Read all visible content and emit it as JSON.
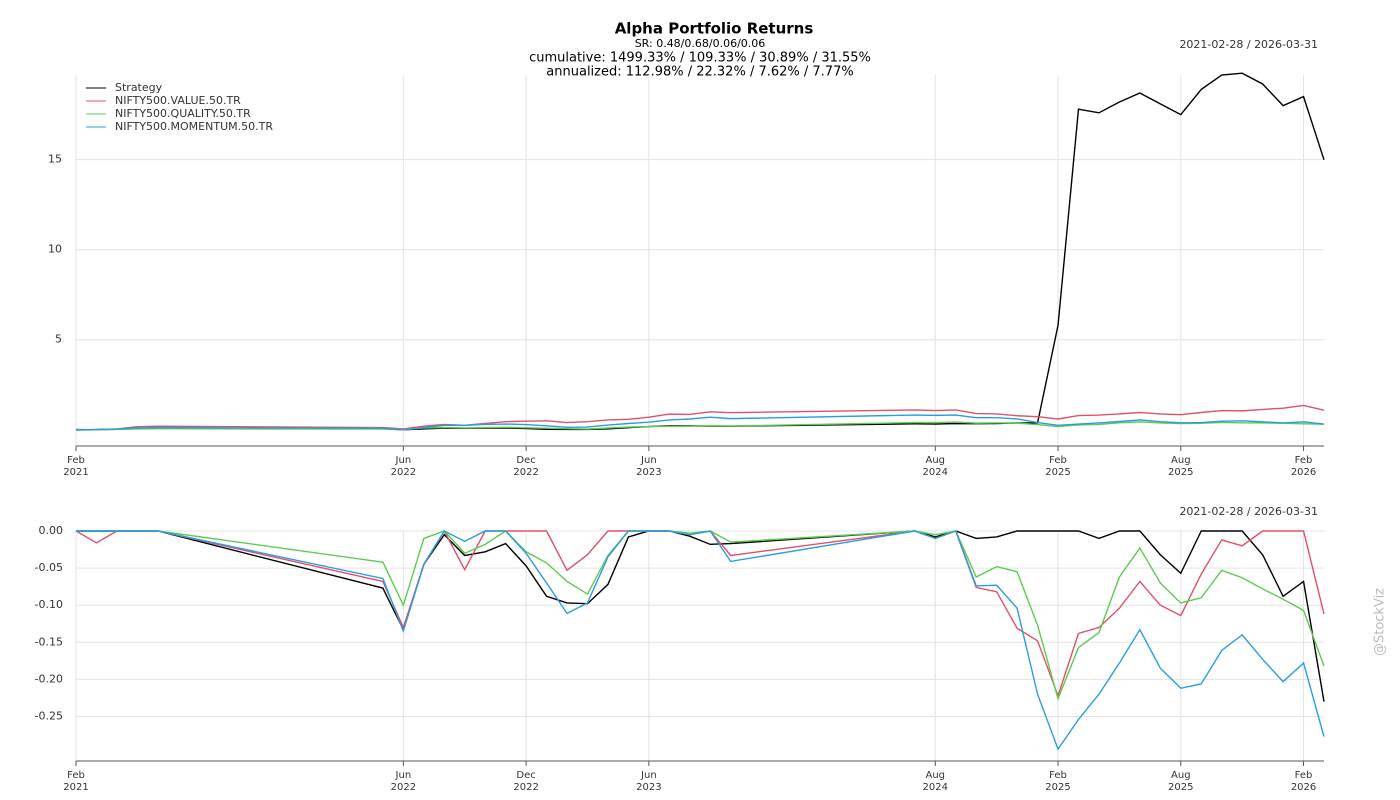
{
  "watermark": "@StockViz",
  "chart_data": [
    {
      "type": "line",
      "title": "Alpha Portfolio Returns",
      "subtitle": [
        "SR: 0.48/0.68/0.06/0.06",
        "cumulative: 1499.33% / 109.33% / 30.89% / 31.55%",
        "annualized: 112.98% / 22.32% / 7.62% / 7.77%"
      ],
      "date_range": "2021-02-28 / 2026-03-31",
      "legend": "upper left",
      "grid": true,
      "x": [
        "2021-02",
        "2021-03",
        "2021-04",
        "2021-05",
        "2021-06",
        "2022-05",
        "2022-06",
        "2022-07",
        "2022-08",
        "2022-09",
        "2022-10",
        "2022-11",
        "2022-12",
        "2023-01",
        "2023-02",
        "2023-03",
        "2023-04",
        "2023-05",
        "2023-06",
        "2023-07",
        "2023-08",
        "2023-09",
        "2023-10",
        "2024-07",
        "2024-08",
        "2024-09",
        "2024-10",
        "2024-11",
        "2024-12",
        "2025-01",
        "2025-02",
        "2025-03",
        "2025-04",
        "2025-05",
        "2025-06",
        "2025-07",
        "2025-08",
        "2025-09",
        "2025-10",
        "2025-11",
        "2025-12",
        "2026-01",
        "2026-02",
        "2026-03"
      ],
      "xlim": [
        "2021-02",
        "2026-03"
      ],
      "xticks": [
        {
          "value": "2021-02",
          "label": "Feb 2021"
        },
        {
          "value": "2022-06",
          "label": "Jun 2022"
        },
        {
          "value": "2022-12",
          "label": "Dec 2022"
        },
        {
          "value": "2023-06",
          "label": "Jun 2023"
        },
        {
          "value": "2024-08",
          "label": "Aug 2024"
        },
        {
          "value": "2025-02",
          "label": "Feb 2025"
        },
        {
          "value": "2025-08",
          "label": "Aug 2025"
        },
        {
          "value": "2026-02",
          "label": "Feb 2026"
        }
      ],
      "ylim": [
        -0.9,
        19.7
      ],
      "yticks": [
        5,
        10,
        15
      ],
      "series": [
        {
          "name": "Strategy",
          "color": "#000000",
          "values": [
            0.0,
            0.01,
            0.03,
            0.08,
            0.1,
            0.06,
            0.0,
            0.05,
            0.1,
            0.08,
            0.09,
            0.1,
            0.07,
            0.03,
            0.02,
            0.02,
            0.05,
            0.12,
            0.18,
            0.23,
            0.22,
            0.2,
            0.2,
            0.33,
            0.32,
            0.35,
            0.34,
            0.35,
            0.38,
            0.38,
            5.8,
            17.8,
            17.6,
            18.2,
            18.7,
            18.1,
            17.5,
            18.9,
            19.7,
            19.8,
            19.2,
            18.0,
            18.5,
            14.99
          ]
        },
        {
          "name": "NIFTY500.VALUE.50.TR",
          "color": "#e0506a",
          "values": [
            0.02,
            0.0,
            0.05,
            0.17,
            0.2,
            0.12,
            0.05,
            0.2,
            0.3,
            0.25,
            0.35,
            0.45,
            0.48,
            0.5,
            0.4,
            0.45,
            0.55,
            0.58,
            0.7,
            0.87,
            0.85,
            1.0,
            0.95,
            1.1,
            1.07,
            1.1,
            0.9,
            0.88,
            0.78,
            0.73,
            0.6,
            0.79,
            0.82,
            0.88,
            0.96,
            0.88,
            0.84,
            0.96,
            1.07,
            1.05,
            1.13,
            1.2,
            1.35,
            1.09
          ]
        },
        {
          "name": "NIFTY500.QUALITY.50.TR",
          "color": "#5ccc4e",
          "values": [
            -0.02,
            0.0,
            0.02,
            0.05,
            0.06,
            0.04,
            0.0,
            0.1,
            0.13,
            0.1,
            0.12,
            0.14,
            0.11,
            0.09,
            0.06,
            0.04,
            0.1,
            0.15,
            0.18,
            0.2,
            0.2,
            0.22,
            0.21,
            0.4,
            0.4,
            0.43,
            0.37,
            0.38,
            0.37,
            0.29,
            0.18,
            0.27,
            0.3,
            0.39,
            0.44,
            0.38,
            0.35,
            0.36,
            0.41,
            0.39,
            0.38,
            0.36,
            0.33,
            0.31
          ]
        },
        {
          "name": "NIFTY500.MOMENTUM.50.TR",
          "color": "#2a9de0",
          "values": [
            0.0,
            0.01,
            0.05,
            0.1,
            0.12,
            0.08,
            0.0,
            0.12,
            0.25,
            0.25,
            0.3,
            0.32,
            0.29,
            0.22,
            0.14,
            0.15,
            0.26,
            0.35,
            0.42,
            0.55,
            0.6,
            0.7,
            0.62,
            0.82,
            0.8,
            0.82,
            0.67,
            0.67,
            0.6,
            0.4,
            0.25,
            0.32,
            0.38,
            0.46,
            0.55,
            0.45,
            0.39,
            0.4,
            0.48,
            0.5,
            0.44,
            0.38,
            0.44,
            0.32
          ]
        }
      ]
    },
    {
      "type": "line",
      "date_range": "2021-02-28 / 2026-03-31",
      "grid": true,
      "x": [
        "2021-02",
        "2021-03",
        "2021-04",
        "2021-05",
        "2021-06",
        "2022-05",
        "2022-06",
        "2022-07",
        "2022-08",
        "2022-09",
        "2022-10",
        "2022-11",
        "2022-12",
        "2023-01",
        "2023-02",
        "2023-03",
        "2023-04",
        "2023-05",
        "2023-06",
        "2023-07",
        "2023-08",
        "2023-09",
        "2023-10",
        "2024-07",
        "2024-08",
        "2024-09",
        "2024-10",
        "2024-11",
        "2024-12",
        "2025-01",
        "2025-02",
        "2025-03",
        "2025-04",
        "2025-05",
        "2025-06",
        "2025-07",
        "2025-08",
        "2025-09",
        "2025-10",
        "2025-11",
        "2025-12",
        "2026-01",
        "2026-02",
        "2026-03"
      ],
      "xlim": [
        "2021-02",
        "2026-03"
      ],
      "xticks": [
        {
          "value": "2021-02",
          "label": "Feb 2021"
        },
        {
          "value": "2022-06",
          "label": "Jun 2022"
        },
        {
          "value": "2022-12",
          "label": "Dec 2022"
        },
        {
          "value": "2023-06",
          "label": "Jun 2023"
        },
        {
          "value": "2024-08",
          "label": "Aug 2024"
        },
        {
          "value": "2025-02",
          "label": "Feb 2025"
        },
        {
          "value": "2025-08",
          "label": "Aug 2025"
        },
        {
          "value": "2026-02",
          "label": "Feb 2026"
        }
      ],
      "ylim": [
        -0.31,
        0.0
      ],
      "yticks": [
        {
          "value": 0,
          "label": "0.00"
        },
        -0.05,
        {
          "value": -0.1,
          "label": "-0.10"
        },
        -0.15,
        {
          "value": -0.2,
          "label": "-0.20"
        },
        -0.25
      ],
      "series": [
        {
          "name": "Strategy",
          "color": "#000000",
          "values": [
            0,
            0,
            0,
            0,
            0,
            -0.077,
            -0.133,
            -0.045,
            -0.005,
            -0.033,
            -0.028,
            -0.017,
            -0.047,
            -0.088,
            -0.097,
            -0.098,
            -0.072,
            -0.008,
            0,
            0,
            -0.007,
            -0.018,
            -0.017,
            0,
            -0.008,
            0,
            -0.01,
            -0.008,
            0,
            0,
            0,
            0,
            -0.01,
            0,
            0,
            -0.032,
            -0.057,
            0,
            0,
            0,
            -0.032,
            -0.088,
            -0.068,
            -0.23
          ]
        },
        {
          "name": "NIFTY500.VALUE.50.TR",
          "color": "#e0506a",
          "values": [
            0,
            -0.016,
            0,
            0,
            0,
            -0.068,
            -0.13,
            -0.045,
            0,
            -0.052,
            0,
            0,
            0,
            0,
            -0.053,
            -0.032,
            0,
            0,
            0,
            0,
            -0.005,
            0,
            -0.033,
            0,
            -0.01,
            0,
            -0.076,
            -0.082,
            -0.131,
            -0.148,
            -0.222,
            -0.138,
            -0.13,
            -0.104,
            -0.068,
            -0.1,
            -0.114,
            -0.058,
            -0.012,
            -0.02,
            0,
            0,
            0,
            -0.112
          ]
        },
        {
          "name": "NIFTY500.QUALITY.50.TR",
          "color": "#5ccc4e",
          "values": [
            0,
            0,
            0,
            0,
            0,
            -0.042,
            -0.1,
            -0.01,
            0,
            -0.03,
            -0.018,
            0,
            -0.028,
            -0.043,
            -0.068,
            -0.085,
            -0.033,
            0,
            0,
            0,
            -0.003,
            0,
            -0.015,
            0,
            -0.005,
            0,
            -0.062,
            -0.048,
            -0.055,
            -0.127,
            -0.226,
            -0.157,
            -0.137,
            -0.062,
            -0.023,
            -0.07,
            -0.097,
            -0.09,
            -0.053,
            -0.063,
            -0.078,
            -0.092,
            -0.107,
            -0.182
          ]
        },
        {
          "name": "NIFTY500.MOMENTUM.50.TR",
          "color": "#2a9de0",
          "values": [
            0,
            0,
            0,
            0,
            0,
            -0.064,
            -0.135,
            -0.045,
            0,
            -0.014,
            0,
            0,
            -0.03,
            -0.07,
            -0.111,
            -0.097,
            -0.035,
            0,
            0,
            0,
            -0.005,
            0,
            -0.041,
            0,
            -0.01,
            0,
            -0.074,
            -0.073,
            -0.104,
            -0.22,
            -0.294,
            -0.254,
            -0.22,
            -0.178,
            -0.133,
            -0.185,
            -0.212,
            -0.206,
            -0.161,
            -0.14,
            -0.173,
            -0.203,
            -0.178,
            -0.277
          ]
        }
      ]
    }
  ]
}
